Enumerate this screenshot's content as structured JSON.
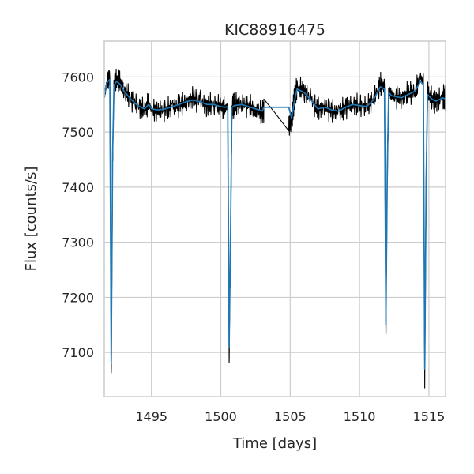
{
  "chart_data": {
    "type": "line",
    "title": "KIC88916475",
    "xlabel": "Time [days]",
    "ylabel": "Flux [counts/s]",
    "xlim": [
      1491.6,
      1516.2
    ],
    "ylim": [
      7020,
      7665
    ],
    "xticks": [
      1495,
      1500,
      1505,
      1510,
      1515
    ],
    "yticks": [
      7100,
      7200,
      7300,
      7400,
      7500,
      7600
    ],
    "grid": true,
    "gap": [
      1503.1,
      1504.9
    ],
    "series": [
      {
        "style": "raw",
        "color": "#000000",
        "x": [
          1491.6,
          1491.8,
          1492.0,
          1492.1,
          1492.2,
          1492.3,
          1492.5,
          1492.8,
          1493.0,
          1493.5,
          1494.0,
          1494.5,
          1494.8,
          1495.0,
          1495.5,
          1496.0,
          1496.5,
          1497.0,
          1497.5,
          1498.0,
          1498.5,
          1499.0,
          1499.5,
          1500.0,
          1500.3,
          1500.5,
          1500.6,
          1500.7,
          1500.8,
          1501.0,
          1501.5,
          1502.0,
          1502.5,
          1503.0,
          1503.1,
          1503.9,
          1504.9,
          1505.1,
          1505.3,
          1505.5,
          1506.0,
          1506.5,
          1507.0,
          1507.5,
          1508.0,
          1508.5,
          1509.0,
          1509.5,
          1510.0,
          1510.5,
          1511.0,
          1511.5,
          1511.8,
          1511.9,
          1512.0,
          1512.1,
          1512.3,
          1512.5,
          1513.0,
          1513.5,
          1514.0,
          1514.4,
          1514.6,
          1514.7,
          1514.8,
          1514.9,
          1515.2,
          1515.5,
          1516.0,
          1516.2
        ],
        "y": [
          7565,
          7590,
          7600,
          7060,
          7450,
          7585,
          7598,
          7588,
          7578,
          7560,
          7548,
          7540,
          7552,
          7540,
          7538,
          7540,
          7545,
          7548,
          7555,
          7560,
          7556,
          7548,
          7552,
          7546,
          7542,
          7548,
          7090,
          7300,
          7545,
          7550,
          7552,
          7548,
          7540,
          7535,
          7540,
          7535,
          7510,
          7520,
          7560,
          7582,
          7575,
          7558,
          7540,
          7546,
          7538,
          7535,
          7545,
          7550,
          7548,
          7546,
          7560,
          7588,
          7580,
          7130,
          7420,
          7575,
          7568,
          7565,
          7562,
          7570,
          7575,
          7600,
          7590,
          7050,
          7400,
          7570,
          7560,
          7555,
          7565,
          7560
        ]
      },
      {
        "style": "smoothed",
        "color": "#1f77b4",
        "x": [
          1491.6,
          1491.8,
          1492.0,
          1492.1,
          1492.2,
          1492.3,
          1492.5,
          1492.8,
          1493.0,
          1493.5,
          1494.0,
          1494.5,
          1494.8,
          1495.0,
          1495.5,
          1496.0,
          1496.5,
          1497.0,
          1497.5,
          1498.0,
          1498.5,
          1499.0,
          1499.5,
          1500.0,
          1500.3,
          1500.5,
          1500.6,
          1500.7,
          1500.8,
          1501.0,
          1501.5,
          1502.0,
          1502.5,
          1503.0,
          1503.1,
          1504.9,
          1505.1,
          1505.3,
          1505.5,
          1506.0,
          1506.5,
          1507.0,
          1507.5,
          1508.0,
          1508.5,
          1509.0,
          1509.5,
          1510.0,
          1510.5,
          1511.0,
          1511.5,
          1511.8,
          1511.9,
          1512.0,
          1512.1,
          1512.3,
          1512.5,
          1513.0,
          1513.5,
          1514.0,
          1514.4,
          1514.6,
          1514.7,
          1514.8,
          1514.9,
          1515.2,
          1515.5,
          1516.0,
          1516.2
        ],
        "y": [
          7565,
          7590,
          7595,
          7080,
          7460,
          7585,
          7592,
          7585,
          7575,
          7560,
          7548,
          7542,
          7550,
          7542,
          7540,
          7542,
          7546,
          7550,
          7555,
          7558,
          7555,
          7550,
          7550,
          7546,
          7545,
          7546,
          7110,
          7310,
          7545,
          7548,
          7550,
          7546,
          7542,
          7538,
          7545,
          7545,
          7525,
          7555,
          7578,
          7572,
          7558,
          7542,
          7545,
          7540,
          7538,
          7545,
          7550,
          7548,
          7546,
          7558,
          7582,
          7578,
          7150,
          7430,
          7572,
          7566,
          7565,
          7562,
          7568,
          7574,
          7592,
          7585,
          7070,
          7410,
          7568,
          7560,
          7556,
          7562,
          7560
        ]
      }
    ]
  }
}
